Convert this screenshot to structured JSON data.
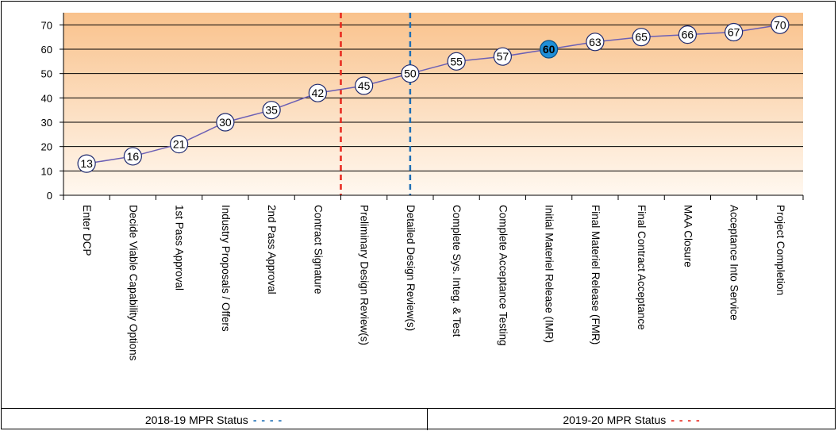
{
  "chart_data": {
    "type": "line",
    "categories": [
      "Enter DCP",
      "Decide Viable Capability Options",
      "1st Pass Approval",
      "Industry Proposals / Offers",
      "2nd Pass Approval",
      "Contract Signature",
      "Preliminary Design Review(s)",
      "Detailed Design Review(s)",
      "Complete Sys. Integ. & Test",
      "Complete Acceptance Testing",
      "Initial Materiel Release (IMR)",
      "Final Materiel Release (FMR)",
      "Final Contract Acceptance",
      "MAA Closure",
      "Acceptance Into Service",
      "Project Completion"
    ],
    "values": [
      13,
      16,
      21,
      30,
      35,
      42,
      45,
      50,
      55,
      57,
      60,
      63,
      65,
      66,
      67,
      70
    ],
    "highlight_index": 10,
    "ylim": [
      0,
      75
    ],
    "yticks": [
      0,
      10,
      20,
      30,
      40,
      50,
      60,
      70
    ],
    "grid": true,
    "markers": [
      {
        "type": "dashed-vertical",
        "color": "#e8261c",
        "between": [
          5,
          6
        ]
      },
      {
        "type": "dashed-vertical",
        "color": "#1f6fb5",
        "at": 7
      }
    ],
    "colors": {
      "line": "#6b5fb5",
      "marker_fill": "#ffffff",
      "highlight_fill": "#1f8fd8",
      "background_top": "#f9c28c",
      "background_bottom": "#fff8f0"
    }
  },
  "footer": {
    "left_label": "2018-19 MPR Status",
    "left_dash": "- - - -",
    "right_label": "2019-20 MPR Status",
    "right_dash": "- - - -"
  }
}
